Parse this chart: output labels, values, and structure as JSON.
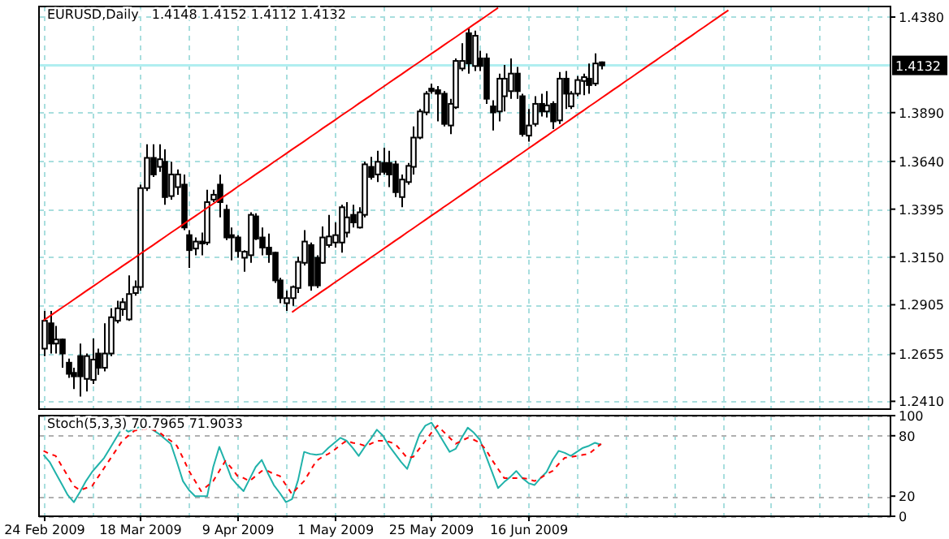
{
  "chart_data": [
    {
      "type": "candlestick",
      "title": "EURUSD,Daily",
      "subtitle": "1.4148 1.4152 1.4112 1.4132",
      "color": "#000000",
      "categories": [
        null,
        null,
        null,
        null,
        null,
        null,
        null,
        null,
        null,
        null,
        null,
        null,
        null,
        null,
        null,
        null,
        null,
        null,
        null,
        null,
        null,
        null,
        null,
        null,
        null,
        null,
        null,
        null,
        null,
        null,
        null,
        null,
        null,
        null,
        null,
        null,
        null,
        null,
        null,
        null,
        null,
        null,
        null,
        null,
        null,
        null,
        null,
        null,
        null,
        null,
        null,
        null,
        null,
        null,
        null,
        null,
        null,
        null,
        null,
        null,
        null,
        null,
        null,
        null,
        null,
        null,
        null,
        null,
        null,
        null,
        null,
        null,
        null,
        null,
        null,
        null,
        null,
        null,
        null,
        null,
        null,
        null,
        null,
        null,
        null,
        null,
        null,
        null,
        null,
        null,
        null,
        null,
        null,
        null,
        null,
        null,
        null,
        null,
        null,
        null,
        null,
        null,
        null,
        null,
        null,
        null,
        null,
        null,
        null,
        null,
        null,
        null,
        null,
        null,
        null,
        null,
        null,
        null,
        null,
        null,
        null,
        null,
        null,
        null,
        null,
        null,
        null,
        null,
        null,
        null,
        null,
        null,
        null,
        null,
        null,
        null,
        null,
        null,
        null,
        null
      ],
      "ohlc": [
        [
          1.268,
          1.2874,
          1.2642,
          1.2823
        ],
        [
          1.281,
          1.2874,
          1.2655,
          1.2706
        ],
        [
          1.2706,
          1.2797,
          1.2655,
          1.2727
        ],
        [
          1.2727,
          1.2732,
          1.2582,
          1.2655
        ],
        [
          1.2608,
          1.2629,
          1.253,
          1.2551
        ],
        [
          1.2556,
          1.2582,
          1.2473,
          1.2538
        ],
        [
          1.2642,
          1.2706,
          1.2435,
          1.2538
        ],
        [
          1.2525,
          1.2655,
          1.2461,
          1.2642
        ],
        [
          1.252,
          1.2732,
          1.2499,
          1.2624
        ],
        [
          1.2655,
          1.268,
          1.2546,
          1.2582
        ],
        [
          1.2582,
          1.281,
          1.2564,
          1.2655
        ],
        [
          1.2655,
          1.2887,
          1.2642,
          1.2841
        ],
        [
          1.2823,
          1.2926,
          1.281,
          1.2887
        ],
        [
          1.2882,
          1.2939,
          1.2849,
          1.2918
        ],
        [
          1.283,
          1.3056,
          1.2823,
          1.296
        ],
        [
          1.2965,
          1.303,
          1.2952,
          1.2996
        ],
        [
          1.2996,
          1.3521,
          1.2978,
          1.3503
        ],
        [
          1.3503,
          1.3728,
          1.3488,
          1.3658
        ],
        [
          1.3658,
          1.3728,
          1.356,
          1.3573
        ],
        [
          1.3612,
          1.3728,
          1.3586,
          1.3651
        ],
        [
          1.3638,
          1.3702,
          1.3418,
          1.3457
        ],
        [
          1.3462,
          1.3638,
          1.3444,
          1.3573
        ],
        [
          1.3508,
          1.3599,
          1.3469,
          1.3573
        ],
        [
          1.3521,
          1.3573,
          1.3288,
          1.3301
        ],
        [
          1.3262,
          1.3288,
          1.3094,
          1.3185
        ],
        [
          1.3193,
          1.325,
          1.3159,
          1.3229
        ],
        [
          1.3229,
          1.3275,
          1.3159,
          1.3219
        ],
        [
          1.3224,
          1.3495,
          1.3211,
          1.3431
        ],
        [
          1.3444,
          1.3495,
          1.3431,
          1.3469
        ],
        [
          1.3521,
          1.3573,
          1.3353,
          1.3431
        ],
        [
          1.3392,
          1.3418,
          1.3237,
          1.325
        ],
        [
          1.3262,
          1.3301,
          1.3133,
          1.325
        ],
        [
          1.325,
          1.3262,
          1.3146,
          1.318
        ],
        [
          1.3146,
          1.3185,
          1.3074,
          1.3177
        ],
        [
          1.3159,
          1.3379,
          1.312,
          1.3366
        ],
        [
          1.3358,
          1.3374,
          1.3237,
          1.3244
        ],
        [
          1.325,
          1.3301,
          1.3159,
          1.3198
        ],
        [
          1.3198,
          1.327,
          1.312,
          1.3164
        ],
        [
          1.3172,
          1.3177,
          1.3017,
          1.303
        ],
        [
          1.303,
          1.3043,
          1.2913,
          1.2939
        ],
        [
          1.2913,
          1.2978,
          1.2874,
          1.2939
        ],
        [
          1.2939,
          1.3004,
          1.29,
          1.2996
        ],
        [
          1.2991,
          1.3151,
          1.2965,
          1.3125
        ],
        [
          1.312,
          1.3288,
          1.3107,
          1.3229
        ],
        [
          1.3211,
          1.3224,
          1.2978,
          1.3004
        ],
        [
          1.3146,
          1.3159,
          1.2991,
          1.3004
        ],
        [
          1.312,
          1.3306,
          1.3115,
          1.325
        ],
        [
          1.3211,
          1.3366,
          1.3198,
          1.3255
        ],
        [
          1.3224,
          1.3327,
          1.3198,
          1.3262
        ],
        [
          1.3224,
          1.3418,
          1.3172,
          1.3405
        ],
        [
          1.3275,
          1.3431,
          1.325,
          1.3353
        ],
        [
          1.3366,
          1.3418,
          1.3301,
          1.3327
        ],
        [
          1.3301,
          1.3405,
          1.3296,
          1.3379
        ],
        [
          1.3366,
          1.3638,
          1.3353,
          1.3625
        ],
        [
          1.3612,
          1.3663,
          1.3547,
          1.356
        ],
        [
          1.3573,
          1.3694,
          1.3534,
          1.3638
        ],
        [
          1.3632,
          1.371,
          1.3573,
          1.3586
        ],
        [
          1.3632,
          1.3694,
          1.3508,
          1.3573
        ],
        [
          1.3625,
          1.3643,
          1.3457,
          1.3482
        ],
        [
          1.3457,
          1.3573,
          1.3405,
          1.3547
        ],
        [
          1.3534,
          1.3632,
          1.3521,
          1.3617
        ],
        [
          1.3612,
          1.3819,
          1.3573,
          1.3762
        ],
        [
          1.3762,
          1.3909,
          1.3754,
          1.3896
        ],
        [
          1.3891,
          1.4,
          1.3876,
          1.3987
        ],
        [
          1.4013,
          1.4039,
          1.3987,
          1.4
        ],
        [
          1.4005,
          1.4026,
          1.3845,
          1.3987
        ],
        [
          1.3987,
          1.4,
          1.3819,
          1.3832
        ],
        [
          1.3824,
          1.3961,
          1.378,
          1.3935
        ],
        [
          1.3917,
          1.4168,
          1.3909,
          1.4155
        ],
        [
          1.4116,
          1.4246,
          1.4103,
          1.4155
        ],
        [
          1.4297,
          1.4323,
          1.409,
          1.4142
        ],
        [
          1.4129,
          1.431,
          1.4103,
          1.4284
        ],
        [
          1.4168,
          1.4207,
          1.4103,
          1.4129
        ],
        [
          1.4168,
          1.4194,
          1.3935,
          1.3961
        ],
        [
          1.3922,
          1.3953,
          1.3798,
          1.3891
        ],
        [
          1.3896,
          1.409,
          1.3845,
          1.4064
        ],
        [
          1.3974,
          1.4134,
          1.3896,
          1.4064
        ],
        [
          1.4,
          1.4168,
          1.3961,
          1.409
        ],
        [
          1.409,
          1.4124,
          1.3961,
          1.4
        ],
        [
          1.3974,
          1.3987,
          1.3767,
          1.378
        ],
        [
          1.3772,
          1.3909,
          1.3741,
          1.3824
        ],
        [
          1.3832,
          1.3974,
          1.3819,
          1.3935
        ],
        [
          1.3935,
          1.3987,
          1.387,
          1.3896
        ],
        [
          1.3896,
          1.4,
          1.3865,
          1.3927
        ],
        [
          1.3935,
          1.3948,
          1.3806,
          1.3845
        ],
        [
          1.385,
          1.4098,
          1.3832,
          1.4064
        ],
        [
          1.4064,
          1.4103,
          1.3909,
          1.3987
        ],
        [
          1.3922,
          1.4,
          1.3909,
          1.3987
        ],
        [
          1.3987,
          1.4077,
          1.3974,
          1.4057
        ],
        [
          1.4052,
          1.409,
          1.3979,
          1.4072
        ],
        [
          1.4064,
          1.4142,
          1.3987,
          1.4031
        ],
        [
          1.4039,
          1.4194,
          1.4026,
          1.4142
        ],
        [
          1.4148,
          1.4152,
          1.4112,
          1.4132
        ],
        null,
        null,
        null,
        null,
        null,
        null,
        null,
        null,
        null,
        null,
        null,
        null,
        null,
        null,
        null,
        null,
        null,
        null,
        null,
        null,
        null,
        null,
        null,
        null,
        null,
        null,
        null,
        null,
        null,
        null,
        null,
        null,
        null,
        null,
        null,
        null,
        null,
        null,
        null,
        null,
        null,
        null,
        null,
        null,
        null,
        null,
        null
      ],
      "series": [
        {
          "type": "line",
          "color": "#ff0000",
          "values": [
            1.2825,
            1.2846,
            1.2868,
            1.2889,
            1.291,
            1.2932,
            1.2953,
            1.2975,
            1.2996,
            1.3017,
            1.3039,
            1.306,
            1.3081,
            1.3103,
            1.3124,
            1.3145,
            1.3167,
            1.3188,
            1.3209,
            1.3231,
            1.3252,
            1.3274,
            1.3295,
            1.3316,
            1.3338,
            1.3359,
            1.338,
            1.3402,
            1.3423,
            1.3444,
            1.3466,
            1.3487,
            1.3509,
            1.353,
            1.3551,
            1.3573,
            1.3594,
            1.3615,
            1.3637,
            1.3658,
            1.3679,
            1.3701,
            1.3722,
            1.3743,
            1.3765,
            1.3786,
            1.3808,
            1.3829,
            1.385,
            1.3872,
            1.3893,
            1.3914,
            1.3936,
            1.3957,
            1.3978,
            1.4,
            1.4021,
            1.4043,
            1.4064,
            1.4085,
            1.4107,
            1.4128,
            1.4149,
            1.4171,
            1.4192,
            1.4213,
            1.4235,
            1.4256,
            1.4277,
            1.4299,
            1.432,
            1.4342,
            1.4363,
            1.4384,
            1.4406,
            1.4427,
            null,
            null,
            null,
            null,
            null,
            null,
            null,
            null,
            null,
            null,
            null,
            null,
            null,
            null,
            null,
            null,
            null,
            null,
            null,
            null,
            null,
            null,
            null,
            null,
            null,
            null,
            null,
            null,
            null,
            null,
            null,
            null,
            null,
            null,
            null,
            null,
            null,
            null,
            null,
            null,
            null,
            null,
            null,
            null,
            null,
            null,
            null,
            null,
            null,
            null,
            null,
            null,
            null,
            null,
            null,
            null,
            null,
            null,
            null,
            null,
            null,
            null,
            null,
            null
          ]
        },
        {
          "type": "line",
          "color": "#ff0000",
          "values": [
            null,
            null,
            null,
            null,
            null,
            null,
            null,
            null,
            null,
            null,
            null,
            null,
            null,
            null,
            null,
            null,
            null,
            null,
            null,
            null,
            null,
            null,
            null,
            null,
            null,
            null,
            null,
            null,
            null,
            null,
            null,
            null,
            null,
            null,
            null,
            null,
            null,
            null,
            null,
            null,
            null,
            1.2867,
            1.2889,
            1.291,
            1.2932,
            1.2953,
            1.2975,
            1.2996,
            1.3018,
            1.3039,
            1.3061,
            1.3082,
            1.3104,
            1.3125,
            1.3147,
            1.3168,
            1.319,
            1.3211,
            1.3233,
            1.3254,
            1.3276,
            1.3297,
            1.3319,
            1.334,
            1.3362,
            1.3383,
            1.3405,
            1.3426,
            1.3448,
            1.3469,
            1.3491,
            1.3512,
            1.3534,
            1.3555,
            1.3577,
            1.3598,
            1.362,
            1.3641,
            1.3663,
            1.3684,
            1.3706,
            1.3727,
            1.3749,
            1.377,
            1.3792,
            1.3813,
            1.3835,
            1.3856,
            1.3878,
            1.3899,
            1.3921,
            1.3942,
            1.3964,
            1.3985,
            1.4007,
            1.4028,
            1.405,
            1.4071,
            1.4093,
            1.4114,
            1.4136,
            1.4157,
            1.4179,
            1.42,
            1.4222,
            1.4243,
            1.4265,
            1.4286,
            1.4308,
            1.4329,
            1.4351,
            1.4372,
            1.4394,
            1.4415,
            null,
            null,
            null,
            null,
            null,
            null,
            null,
            null,
            null,
            null,
            null,
            null,
            null,
            null,
            null,
            null,
            null,
            null,
            null,
            null,
            null,
            null,
            null,
            null,
            null,
            null
          ]
        }
      ],
      "ylim": [
        1.237,
        1.4434
      ],
      "yticks": [
        {
          "value": 1.438,
          "label": "1.4380"
        },
        {
          "value": 1.389,
          "label": "1.3890"
        },
        {
          "value": 1.364,
          "label": "1.3640"
        },
        1.3395,
        {
          "value": 1.315,
          "label": "1.3150"
        },
        1.2905,
        1.2655,
        {
          "value": 1.241,
          "label": "1.2410"
        }
      ],
      "ref_lines": [
        {
          "axis": "y",
          "value": 1.4132,
          "label": "1.4132",
          "color": "#b0eef0"
        }
      ],
      "grid": true,
      "tick_labels": "y"
    },
    {
      "type": "line",
      "title": "Stoch(5,3,3) 70.7965 71.9033",
      "categories": [
        "24 Feb 2009",
        null,
        null,
        null,
        null,
        null,
        null,
        null,
        null,
        null,
        null,
        null,
        null,
        null,
        null,
        null,
        "18 Mar 2009",
        null,
        null,
        null,
        null,
        null,
        null,
        null,
        null,
        null,
        null,
        null,
        null,
        null,
        null,
        null,
        "9 Apr 2009",
        null,
        null,
        null,
        null,
        null,
        null,
        null,
        null,
        null,
        null,
        null,
        null,
        null,
        null,
        null,
        "1 May 2009",
        null,
        null,
        null,
        null,
        null,
        null,
        null,
        null,
        null,
        null,
        null,
        null,
        null,
        null,
        null,
        "25 May 2009",
        null,
        null,
        null,
        null,
        null,
        null,
        null,
        null,
        null,
        null,
        null,
        null,
        null,
        null,
        null,
        "16 Jun 2009",
        null,
        null,
        null,
        null,
        null,
        null,
        null,
        null,
        null,
        null,
        null,
        null,
        null,
        null,
        null,
        null,
        null,
        null,
        null,
        null,
        null,
        null,
        null,
        null,
        null,
        null,
        null,
        null,
        null,
        null,
        null,
        null,
        null,
        null,
        null,
        null,
        null,
        null,
        null,
        null,
        null,
        null,
        null,
        null,
        null,
        null,
        null,
        null,
        null,
        null,
        null,
        null,
        null,
        null,
        null,
        null,
        null,
        null,
        null
      ],
      "series": [
        {
          "color": "#20b2aa",
          "values": [
            61,
            54,
            43,
            32,
            21,
            14,
            24,
            35,
            44,
            51,
            58,
            68,
            78,
            88,
            84,
            87,
            89,
            90,
            86,
            82,
            77,
            72,
            54,
            35,
            26,
            20,
            20,
            20,
            49,
            69,
            54,
            38,
            31,
            25,
            37,
            49,
            56,
            43,
            31,
            23,
            14,
            17,
            36,
            64,
            62,
            61,
            62,
            68,
            73,
            78,
            75,
            68,
            60,
            69,
            77,
            86,
            80,
            70,
            62,
            54,
            47,
            64,
            81,
            90,
            93,
            84,
            74,
            64,
            67,
            78,
            88,
            83,
            76,
            60,
            44,
            28,
            34,
            39,
            45,
            38,
            33,
            31,
            38,
            44,
            56,
            65,
            63,
            60,
            64,
            68,
            70,
            73,
            71,
            null,
            null,
            null,
            null,
            null,
            null,
            null,
            null,
            null,
            null,
            null,
            null,
            null,
            null,
            null,
            null,
            null,
            null,
            null,
            null,
            null,
            null,
            null,
            null,
            null,
            null,
            null,
            null,
            null,
            null,
            null,
            null,
            null,
            null,
            null,
            null,
            null,
            null,
            null,
            null,
            null,
            null,
            null,
            null,
            null,
            null,
            null
          ]
        },
        {
          "color": "#ff0000",
          "line_style": "dashed",
          "values": [
            65,
            62,
            60,
            50,
            40,
            30,
            26,
            28,
            30,
            39,
            48,
            57,
            66,
            75,
            80,
            85,
            86,
            87,
            86,
            84,
            79,
            75,
            70,
            58,
            45,
            35,
            25,
            30,
            35,
            45,
            55,
            48,
            40,
            38,
            35,
            40,
            45,
            45,
            42,
            40,
            31,
            22,
            29,
            35,
            45,
            55,
            59,
            62,
            66,
            71,
            75,
            73,
            72,
            70,
            72,
            75,
            75,
            74,
            72,
            65,
            58,
            59,
            67,
            75,
            83,
            90,
            84,
            78,
            72,
            75,
            78,
            76,
            73,
            66,
            56,
            47,
            38,
            38,
            38,
            38,
            37,
            35,
            38,
            42,
            45,
            52,
            58,
            59,
            60,
            61,
            62,
            67,
            72,
            null,
            null,
            null,
            null,
            null,
            null,
            null,
            null,
            null,
            null,
            null,
            null,
            null,
            null,
            null,
            null,
            null,
            null,
            null,
            null,
            null,
            null,
            null,
            null,
            null,
            null,
            null,
            null,
            null,
            null,
            null,
            null,
            null,
            null,
            null,
            null,
            null,
            null,
            null,
            null,
            null,
            null,
            null,
            null,
            null,
            null,
            null
          ]
        }
      ],
      "ylim": [
        0,
        100
      ],
      "yticks": [
        100,
        80,
        20,
        0
      ],
      "grid": true
    }
  ]
}
